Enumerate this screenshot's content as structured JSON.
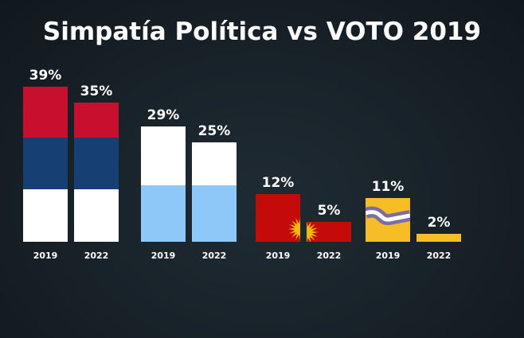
{
  "chart_data": {
    "type": "bar",
    "title": "Simpatía Política vs VOTO 2019",
    "categories": [
      "2019",
      "2022",
      "2019",
      "2022",
      "2019",
      "2022",
      "2019",
      "2022"
    ],
    "groups": [
      {
        "style": "red-blue-white flag",
        "values": [
          39,
          35
        ],
        "labels": [
          "39%",
          "35%"
        ],
        "years": [
          "2019",
          "2022"
        ],
        "colors": [
          "#c8102e",
          "#163f73",
          "#ffffff"
        ]
      },
      {
        "style": "white-lightblue flag",
        "values": [
          29,
          25
        ],
        "labels": [
          "29%",
          "25%"
        ],
        "years": [
          "2019",
          "2022"
        ],
        "colors": [
          "#ffffff",
          "#8ec8f8"
        ]
      },
      {
        "style": "red with sun",
        "values": [
          12,
          5
        ],
        "labels": [
          "12%",
          "5%"
        ],
        "years": [
          "2019",
          "2022"
        ],
        "colors": [
          "#c50a0a",
          "#f5b800"
        ]
      },
      {
        "style": "yellow with wavy stripe",
        "values": [
          11,
          2
        ],
        "labels": [
          "11%",
          "2%"
        ],
        "years": [
          "2019",
          "2022"
        ],
        "colors": [
          "#f7bd26",
          "#7b6ea6",
          "#ffffff"
        ]
      }
    ],
    "ylim": [
      0,
      40
    ],
    "grid": false
  }
}
